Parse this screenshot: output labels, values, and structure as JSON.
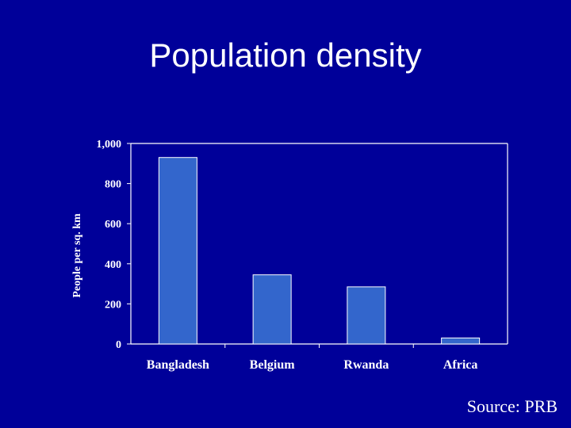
{
  "slide": {
    "title": "Population density",
    "source": "Source: PRB"
  },
  "colors": {
    "background": "#000099",
    "bar": "#3366cc",
    "axis": "#ffffff",
    "text": "#ffffff"
  },
  "chart_data": {
    "type": "bar",
    "title": "",
    "xlabel": "",
    "ylabel": "People per sq. km",
    "categories": [
      "Bangladesh",
      "Belgium",
      "Rwanda",
      "Africa"
    ],
    "values": [
      930,
      345,
      285,
      30
    ],
    "ylim": [
      0,
      1000
    ],
    "yticks": [
      0,
      200,
      400,
      600,
      800,
      1000
    ],
    "ytick_labels": [
      "0",
      "200",
      "400",
      "600",
      "800",
      "1,000"
    ],
    "grid": false,
    "legend": "none"
  }
}
